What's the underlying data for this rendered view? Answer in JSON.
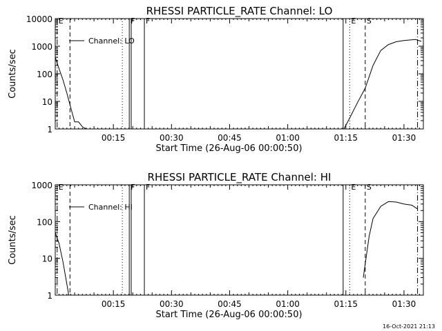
{
  "chart_data": [
    {
      "type": "line",
      "title": "RHESSI PARTICLE_RATE Channel: LO",
      "xlabel": "Start Time (26-Aug-06 00:00:50)",
      "ylabel": "Counts/sec",
      "yscale": "log",
      "ylim": [
        1,
        10000
      ],
      "xlim_min": [
        0,
        95
      ],
      "ytick_values": [
        1,
        10,
        100,
        1000,
        10000
      ],
      "ytick_labels": [
        "1",
        "10",
        "100",
        "1000",
        "10000"
      ],
      "xtick_values": [
        15,
        30,
        45,
        60,
        75,
        90
      ],
      "xtick_labels": [
        "00:15",
        "00:30",
        "00:45",
        "01:00",
        "01:15",
        "01:30"
      ],
      "legend": "Channel: LO",
      "series": [
        {
          "name": "Channel: LO",
          "segments": [
            {
              "x": [
                0,
                1,
                2,
                3,
                4,
                5,
                6,
                7,
                8,
                9
              ],
              "y": [
                400,
                150,
                60,
                20,
                6,
                1.8,
                1.8,
                1.2,
                1,
                1
              ]
            },
            {
              "x": [
                74.5,
                76,
                78,
                80,
                82,
                84,
                86,
                88,
                90,
                92,
                93,
                94.5
              ],
              "y": [
                1,
                2.5,
                9,
                30,
                200,
                700,
                1150,
                1450,
                1600,
                1700,
                1750,
                1500
              ]
            }
          ]
        }
      ],
      "markers": [
        {
          "x": 0.5,
          "label": "E",
          "style": "dash-dot"
        },
        {
          "x": 3.8,
          "label": "",
          "style": "dashed"
        },
        {
          "x": 17.3,
          "label": "",
          "style": "dotted"
        },
        {
          "x": 19.1,
          "label": "F",
          "style": "solid"
        },
        {
          "x": 19.6,
          "label": "",
          "style": "solid"
        },
        {
          "x": 23.0,
          "label": "F",
          "style": "solid"
        },
        {
          "x": 74.3,
          "label": "",
          "style": "solid"
        },
        {
          "x": 76.0,
          "label": "E",
          "style": "dotted"
        },
        {
          "x": 80.0,
          "label": "S",
          "style": "dashed"
        },
        {
          "x": 93.5,
          "label": "",
          "style": "dash-dot"
        }
      ]
    },
    {
      "type": "line",
      "title": "RHESSI PARTICLE_RATE Channel: HI",
      "xlabel": "Start Time (26-Aug-06 00:00:50)",
      "ylabel": "Counts/sec",
      "yscale": "log",
      "ylim": [
        1,
        1000
      ],
      "xlim_min": [
        0,
        95
      ],
      "ytick_values": [
        1,
        10,
        100,
        1000
      ],
      "ytick_labels": [
        "1",
        "10",
        "100",
        "1000"
      ],
      "xtick_values": [
        15,
        30,
        45,
        60,
        75,
        90
      ],
      "xtick_labels": [
        "00:15",
        "00:30",
        "00:45",
        "01:00",
        "01:15",
        "01:30"
      ],
      "legend": "Channel: HI",
      "series": [
        {
          "name": "Channel: HI",
          "segments": [
            {
              "x": [
                0,
                1,
                2,
                3,
                3.5
              ],
              "y": [
                50,
                25,
                8,
                2,
                1
              ]
            },
            {
              "x": [
                79.5,
                81,
                82,
                84,
                86,
                88,
                90,
                92,
                93.5
              ],
              "y": [
                3,
                40,
                120,
                260,
                350,
                340,
                300,
                280,
                220
              ]
            }
          ]
        }
      ],
      "markers": [
        {
          "x": 0.5,
          "label": "E",
          "style": "dash-dot"
        },
        {
          "x": 3.8,
          "label": "",
          "style": "dashed"
        },
        {
          "x": 17.3,
          "label": "",
          "style": "dotted"
        },
        {
          "x": 19.1,
          "label": "F",
          "style": "solid"
        },
        {
          "x": 19.6,
          "label": "",
          "style": "solid"
        },
        {
          "x": 23.0,
          "label": "F",
          "style": "solid"
        },
        {
          "x": 74.3,
          "label": "",
          "style": "solid"
        },
        {
          "x": 76.0,
          "label": "E",
          "style": "dotted"
        },
        {
          "x": 80.0,
          "label": "S",
          "style": "dashed"
        },
        {
          "x": 93.5,
          "label": "",
          "style": "dash-dot"
        }
      ]
    }
  ],
  "footer": {
    "timestamp": "16-Oct-2021 21:13"
  }
}
